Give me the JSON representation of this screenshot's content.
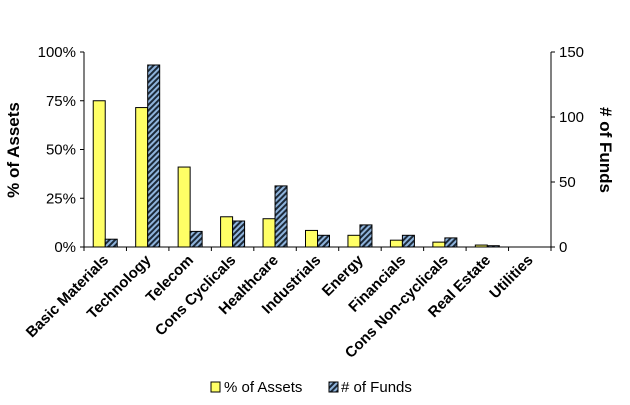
{
  "chart_data": {
    "type": "bar",
    "categories": [
      "Basic Materials",
      "Technology",
      "Telecom",
      "Cons Cyclicals",
      "Healthcare",
      "Industrials",
      "Energy",
      "Financials",
      "Cons Non-cyclicals",
      "Real Estate",
      "Utilities"
    ],
    "series": [
      {
        "name": "% of Assets",
        "axis": "left",
        "values": [
          75,
          71.5,
          41,
          15.5,
          14.5,
          8.5,
          6,
          3.5,
          2.5,
          1,
          0
        ],
        "color": "#ffff66"
      },
      {
        "name": "# of Funds",
        "axis": "right",
        "values": [
          6,
          140,
          12,
          20,
          47,
          9,
          17,
          9,
          7,
          1,
          0
        ],
        "color": "#1c2a3a",
        "hatch": "#8fb4dc"
      }
    ],
    "left_axis": {
      "label": "% of Assets",
      "ticks": [
        "0%",
        "25%",
        "50%",
        "75%",
        "100%"
      ],
      "ylim": [
        0,
        100
      ]
    },
    "right_axis": {
      "label": "# of Funds",
      "ticks": [
        "0",
        "50",
        "100",
        "150"
      ],
      "ylim": [
        0,
        150
      ]
    },
    "legend": {
      "placement": "bottom"
    },
    "grid": false
  }
}
